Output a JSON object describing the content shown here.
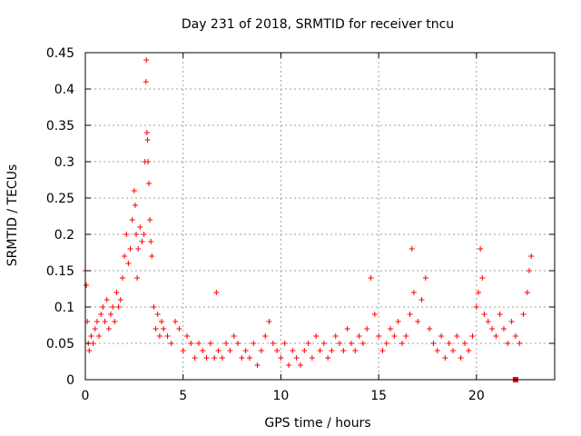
{
  "chart_data": {
    "type": "scatter",
    "title": "Day 231 of 2018, SRMTID for receiver tncu",
    "xlabel": "GPS time / hours",
    "ylabel": "SRMTID / TECUs",
    "xlim": [
      0,
      24
    ],
    "ylim": [
      0,
      0.45
    ],
    "xticks": [
      0,
      5,
      10,
      15,
      20
    ],
    "xtick_labels": [
      "0",
      "5",
      "10",
      "15",
      "20"
    ],
    "yticks": [
      0,
      0.05,
      0.1,
      0.15,
      0.2,
      0.25,
      0.3,
      0.35,
      0.4,
      0.45
    ],
    "ytick_labels": [
      "0",
      "0.05",
      "0.1",
      "0.15",
      "0.2",
      "0.25",
      "0.3",
      "0.35",
      "0.4",
      "0.45"
    ],
    "grid": true,
    "marker": "+",
    "marker_color": "#ff0000",
    "series": [
      {
        "name": "SRMTID",
        "x": [
          0.0,
          0.05,
          0.1,
          0.15,
          0.2,
          0.3,
          0.4,
          0.5,
          0.6,
          0.7,
          0.8,
          0.9,
          1.0,
          1.1,
          1.2,
          1.3,
          1.4,
          1.5,
          1.6,
          1.7,
          1.8,
          1.9,
          2.0,
          2.1,
          2.2,
          2.3,
          2.4,
          2.5,
          2.55,
          2.6,
          2.65,
          2.7,
          2.8,
          2.9,
          3.0,
          3.05,
          3.1,
          3.12,
          3.15,
          3.18,
          3.2,
          3.25,
          3.3,
          3.35,
          3.4,
          3.5,
          3.6,
          3.7,
          3.8,
          3.9,
          4.0,
          4.2,
          4.4,
          4.6,
          4.8,
          5.0,
          5.2,
          5.4,
          5.6,
          5.8,
          6.0,
          6.2,
          6.4,
          6.6,
          6.8,
          6.7,
          7.0,
          7.2,
          7.4,
          7.6,
          7.8,
          8.0,
          8.2,
          8.4,
          8.6,
          8.8,
          9.0,
          9.2,
          9.4,
          9.6,
          9.8,
          10.0,
          10.2,
          10.4,
          10.6,
          10.8,
          11.0,
          11.2,
          11.4,
          11.6,
          11.8,
          12.0,
          12.2,
          12.4,
          12.6,
          12.8,
          13.0,
          13.2,
          13.4,
          13.6,
          13.8,
          14.0,
          14.2,
          14.4,
          14.6,
          14.8,
          15.0,
          15.2,
          15.4,
          15.6,
          15.8,
          16.0,
          16.2,
          16.4,
          16.6,
          16.7,
          16.8,
          17.0,
          17.2,
          17.4,
          17.6,
          17.8,
          18.0,
          18.2,
          18.4,
          18.6,
          18.8,
          19.0,
          19.2,
          19.4,
          19.6,
          19.8,
          20.0,
          20.1,
          20.2,
          20.3,
          20.4,
          20.6,
          20.8,
          21.0,
          21.2,
          21.4,
          21.6,
          21.8,
          22.0,
          22.2,
          22.4,
          22.6,
          22.7,
          22.8
        ],
        "y": [
          0.15,
          0.13,
          0.08,
          0.05,
          0.04,
          0.06,
          0.05,
          0.07,
          0.08,
          0.06,
          0.09,
          0.1,
          0.08,
          0.11,
          0.07,
          0.09,
          0.1,
          0.08,
          0.12,
          0.1,
          0.11,
          0.14,
          0.17,
          0.2,
          0.16,
          0.18,
          0.22,
          0.26,
          0.24,
          0.2,
          0.14,
          0.18,
          0.21,
          0.19,
          0.2,
          0.3,
          0.41,
          0.44,
          0.34,
          0.33,
          0.3,
          0.27,
          0.22,
          0.19,
          0.17,
          0.1,
          0.07,
          0.09,
          0.06,
          0.08,
          0.07,
          0.06,
          0.05,
          0.08,
          0.07,
          0.04,
          0.06,
          0.05,
          0.03,
          0.05,
          0.04,
          0.03,
          0.05,
          0.03,
          0.04,
          0.12,
          0.03,
          0.05,
          0.04,
          0.06,
          0.05,
          0.03,
          0.04,
          0.03,
          0.05,
          0.02,
          0.04,
          0.06,
          0.08,
          0.05,
          0.04,
          0.03,
          0.05,
          0.02,
          0.04,
          0.03,
          0.02,
          0.04,
          0.05,
          0.03,
          0.06,
          0.04,
          0.05,
          0.03,
          0.04,
          0.06,
          0.05,
          0.04,
          0.07,
          0.05,
          0.04,
          0.06,
          0.05,
          0.07,
          0.14,
          0.09,
          0.06,
          0.04,
          0.05,
          0.07,
          0.06,
          0.08,
          0.05,
          0.06,
          0.09,
          0.18,
          0.12,
          0.08,
          0.11,
          0.14,
          0.07,
          0.05,
          0.04,
          0.06,
          0.03,
          0.05,
          0.04,
          0.06,
          0.03,
          0.05,
          0.04,
          0.06,
          0.1,
          0.12,
          0.18,
          0.14,
          0.09,
          0.08,
          0.07,
          0.06,
          0.09,
          0.07,
          0.05,
          0.08,
          0.06,
          0.05,
          0.09,
          0.12,
          0.15,
          0.17
        ]
      }
    ],
    "annotations": [
      {
        "type": "square-marker",
        "x": 22.0,
        "y": 0.0
      }
    ]
  }
}
